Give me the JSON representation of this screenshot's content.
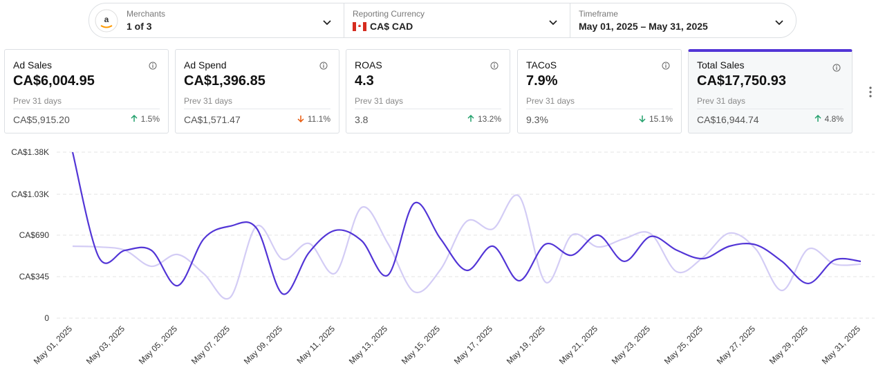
{
  "filters": [
    {
      "label": "Merchants",
      "value": "1 of 3"
    },
    {
      "label": "Reporting Currency",
      "value": "CA$ CAD"
    },
    {
      "label": "Timeframe",
      "value": "May 01, 2025 – May 31, 2025"
    }
  ],
  "cards": [
    {
      "title": "Ad Sales",
      "value": "CA$6,004.95",
      "prev_label": "Prev 31 days",
      "prev_value": "CA$5,915.20",
      "change": "1.5%",
      "direction": "up",
      "change_color": "#22a06b"
    },
    {
      "title": "Ad Spend",
      "value": "CA$1,396.85",
      "prev_label": "Prev 31 days",
      "prev_value": "CA$1,571.47",
      "change": "11.1%",
      "direction": "down",
      "change_color": "#e8590c"
    },
    {
      "title": "ROAS",
      "value": "4.3",
      "prev_label": "Prev 31 days",
      "prev_value": "3.8",
      "change": "13.2%",
      "direction": "up",
      "change_color": "#22a06b"
    },
    {
      "title": "TACoS",
      "value": "7.9%",
      "prev_label": "Prev 31 days",
      "prev_value": "9.3%",
      "change": "15.1%",
      "direction": "down",
      "change_color": "#22a06b"
    },
    {
      "title": "Total Sales",
      "value": "CA$17,750.93",
      "prev_label": "Prev 31 days",
      "prev_value": "CA$16,944.74",
      "change": "4.8%",
      "direction": "up",
      "change_color": "#22a06b",
      "selected": true
    }
  ],
  "chart_data": {
    "type": "line",
    "categories": [
      "May 01, 2025",
      null,
      "May 03, 2025",
      null,
      "May 05, 2025",
      null,
      "May 07, 2025",
      null,
      "May 09, 2025",
      null,
      "May 11, 2025",
      null,
      "May 13, 2025",
      null,
      "May 15, 2025",
      null,
      "May 17, 2025",
      null,
      "May 19, 2025",
      null,
      "May 21, 2025",
      null,
      "May 23, 2025",
      null,
      "May 25, 2025",
      null,
      "May 27, 2025",
      null,
      "May 29, 2025",
      null,
      "May 31, 2025"
    ],
    "series": [
      {
        "color": "#d3ccf5",
        "values": [
          598,
          592,
          564,
          431,
          529,
          368,
          173,
          765,
          489,
          621,
          374,
          920,
          621,
          219,
          403,
          805,
          742,
          1012,
          299,
          690,
          592,
          661,
          702,
          385,
          506,
          707,
          575,
          230,
          575,
          449,
          449
        ]
      },
      {
        "color": "#5235d6",
        "values": [
          1380,
          506,
          564,
          564,
          270,
          661,
          765,
          748,
          201,
          546,
          730,
          644,
          357,
          955,
          661,
          397,
          598,
          311,
          615,
          523,
          690,
          472,
          679,
          564,
          495,
          598,
          610,
          472,
          288,
          483,
          472
        ]
      }
    ],
    "ylim": [
      0,
      1380
    ],
    "yticks": [
      0,
      {
        "value": 345,
        "label": "CA$345"
      },
      {
        "value": 690,
        "label": "CA$690"
      },
      {
        "value": 1030,
        "label": "CA$1.03K"
      },
      {
        "value": 1380,
        "label": "CA$1.38K"
      }
    ],
    "grid": true
  }
}
